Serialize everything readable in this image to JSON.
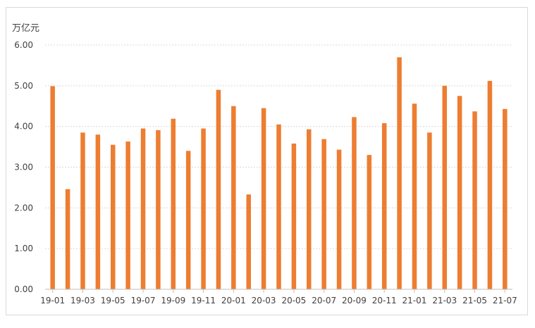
{
  "chart_data": {
    "type": "bar",
    "unit": "万亿元",
    "color": "#ED7D31",
    "gridline_color": "#d9d9d9",
    "grid": true,
    "ylim": [
      0,
      6
    ],
    "yticks": [
      "0.00",
      "1.00",
      "2.00",
      "3.00",
      "4.00",
      "5.00",
      "6.00"
    ],
    "categories": [
      "19-01",
      "19-02",
      "19-03",
      "19-04",
      "19-05",
      "19-06",
      "19-07",
      "19-08",
      "19-09",
      "19-10",
      "19-11",
      "19-12",
      "20-01",
      "20-02",
      "20-03",
      "20-04",
      "20-05",
      "20-06",
      "20-07",
      "20-08",
      "20-09",
      "20-10",
      "20-11",
      "20-12",
      "21-01",
      "21-02",
      "21-03",
      "21-04",
      "21-05",
      "21-06",
      "21-07"
    ],
    "x_tick_labels": [
      "19-01",
      "",
      "19-03",
      "",
      "19-05",
      "",
      "19-07",
      "",
      "19-09",
      "",
      "19-11",
      "",
      "20-01",
      "",
      "20-03",
      "",
      "20-05",
      "",
      "20-07",
      "",
      "20-09",
      "",
      "20-11",
      "",
      "21-01",
      "",
      "21-03",
      "",
      "21-05",
      "",
      "21-07"
    ],
    "values": [
      4.99,
      2.46,
      3.85,
      3.8,
      3.55,
      3.63,
      3.95,
      3.91,
      4.19,
      3.4,
      3.95,
      4.9,
      4.5,
      2.33,
      4.45,
      4.05,
      3.58,
      3.93,
      3.69,
      3.43,
      4.23,
      3.3,
      4.08,
      5.7,
      4.56,
      3.85,
      5.0,
      4.75,
      4.37,
      5.12,
      4.43
    ]
  }
}
